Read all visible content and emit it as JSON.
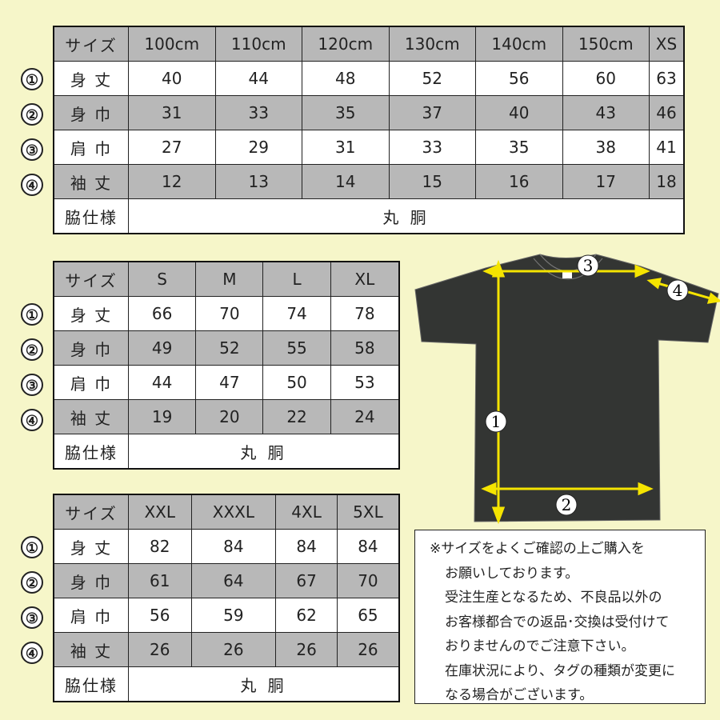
{
  "row_labels": [
    "サイズ",
    "身 丈",
    "身 巾",
    "肩 巾",
    "袖 丈",
    "脇仕様"
  ],
  "markers": [
    "①",
    "②",
    "③",
    "④"
  ],
  "side_value": "丸 胴",
  "tables": [
    {
      "sizes": [
        "100cm",
        "110cm",
        "120cm",
        "130cm",
        "140cm",
        "150cm",
        "XS"
      ],
      "rows": [
        [
          "40",
          "44",
          "48",
          "52",
          "56",
          "60",
          "63"
        ],
        [
          "31",
          "33",
          "35",
          "37",
          "40",
          "43",
          "46"
        ],
        [
          "27",
          "29",
          "31",
          "33",
          "35",
          "38",
          "41"
        ],
        [
          "12",
          "13",
          "14",
          "15",
          "16",
          "17",
          "18"
        ]
      ]
    },
    {
      "sizes": [
        "S",
        "M",
        "L",
        "XL"
      ],
      "rows": [
        [
          "66",
          "70",
          "74",
          "78"
        ],
        [
          "49",
          "52",
          "55",
          "58"
        ],
        [
          "44",
          "47",
          "50",
          "53"
        ],
        [
          "19",
          "20",
          "22",
          "24"
        ]
      ]
    },
    {
      "sizes": [
        "XXL",
        "XXXL",
        "4XL",
        "5XL"
      ],
      "rows": [
        [
          "82",
          "84",
          "84",
          "84"
        ],
        [
          "61",
          "64",
          "67",
          "70"
        ],
        [
          "56",
          "59",
          "62",
          "65"
        ],
        [
          "26",
          "26",
          "26",
          "26"
        ]
      ]
    }
  ],
  "diagram": {
    "labels": [
      "1",
      "2",
      "3",
      "4"
    ],
    "shirt_color": "#333533",
    "arrow_color": "#f5e400"
  },
  "notes": [
    "※サイズをよくご確認の上ご購入を",
    "お願いしております。",
    "受注生産となるため、不良品以外の",
    "お客様都合での返品･交換は受付けて",
    "おりませんのでご注意下さい。",
    "在庫状況により、タグの種類が変更に",
    "なる場合がございます。"
  ],
  "colors": {
    "background": "#f6f6c9",
    "gray_row": "#b8b8b8"
  }
}
